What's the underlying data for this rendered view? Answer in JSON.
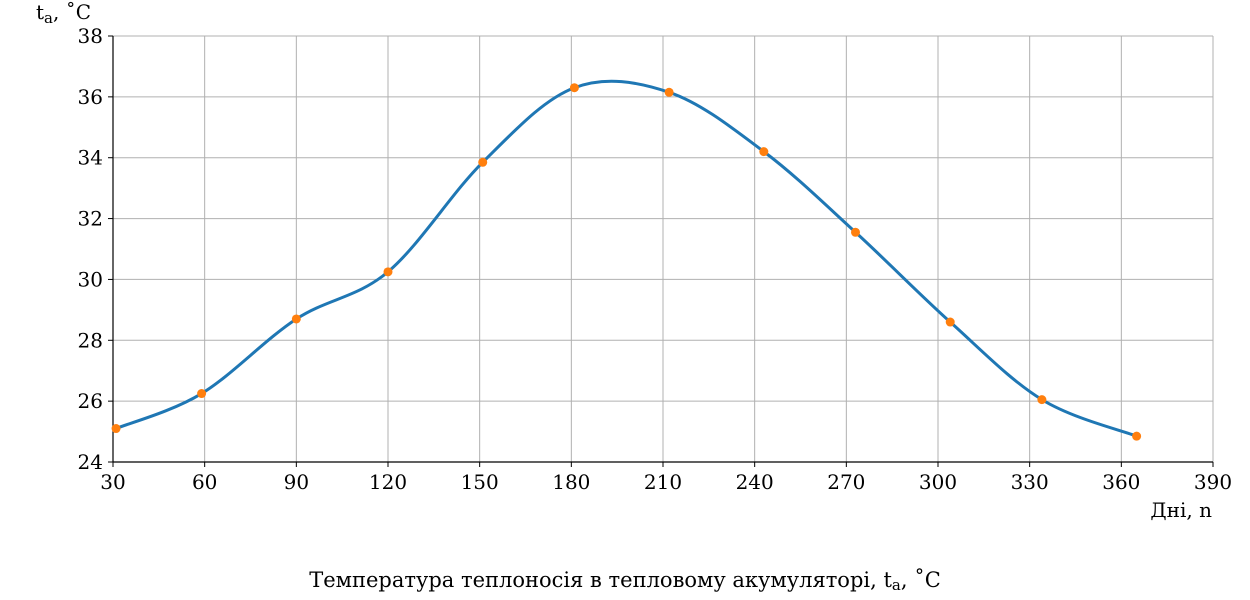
{
  "chart_data": {
    "type": "line",
    "title": "",
    "caption_main": "Температура теплоносія в тепловому акумуляторі, t",
    "caption_sub": "a",
    "caption_tail": ", ˚C",
    "xlabel": "Дні, n",
    "ylabel_main": "t",
    "ylabel_sub": "a",
    "ylabel_tail": ", ˚C",
    "xlim": [
      30,
      390
    ],
    "ylim": [
      24,
      38
    ],
    "xticks": [
      30,
      60,
      90,
      120,
      150,
      180,
      210,
      240,
      270,
      300,
      330,
      360,
      390
    ],
    "yticks": [
      24,
      26,
      28,
      30,
      32,
      34,
      36,
      38
    ],
    "grid": true,
    "series": [
      {
        "color": "#1f77b4",
        "style": "smooth-line",
        "x": [
          31,
          59,
          90,
          120,
          151,
          181,
          212,
          243,
          273,
          304,
          334,
          365
        ],
        "y": [
          25.1,
          26.25,
          28.7,
          30.25,
          33.85,
          36.3,
          36.15,
          34.2,
          31.55,
          28.6,
          26.05,
          24.85
        ]
      },
      {
        "color": "#ff7f0e",
        "style": "markers",
        "x": [
          31,
          59,
          90,
          120,
          151,
          181,
          212,
          243,
          273,
          304,
          334,
          365
        ],
        "y": [
          25.1,
          26.25,
          28.7,
          30.25,
          33.85,
          36.3,
          36.15,
          34.2,
          31.55,
          28.6,
          26.05,
          24.85
        ]
      }
    ]
  }
}
